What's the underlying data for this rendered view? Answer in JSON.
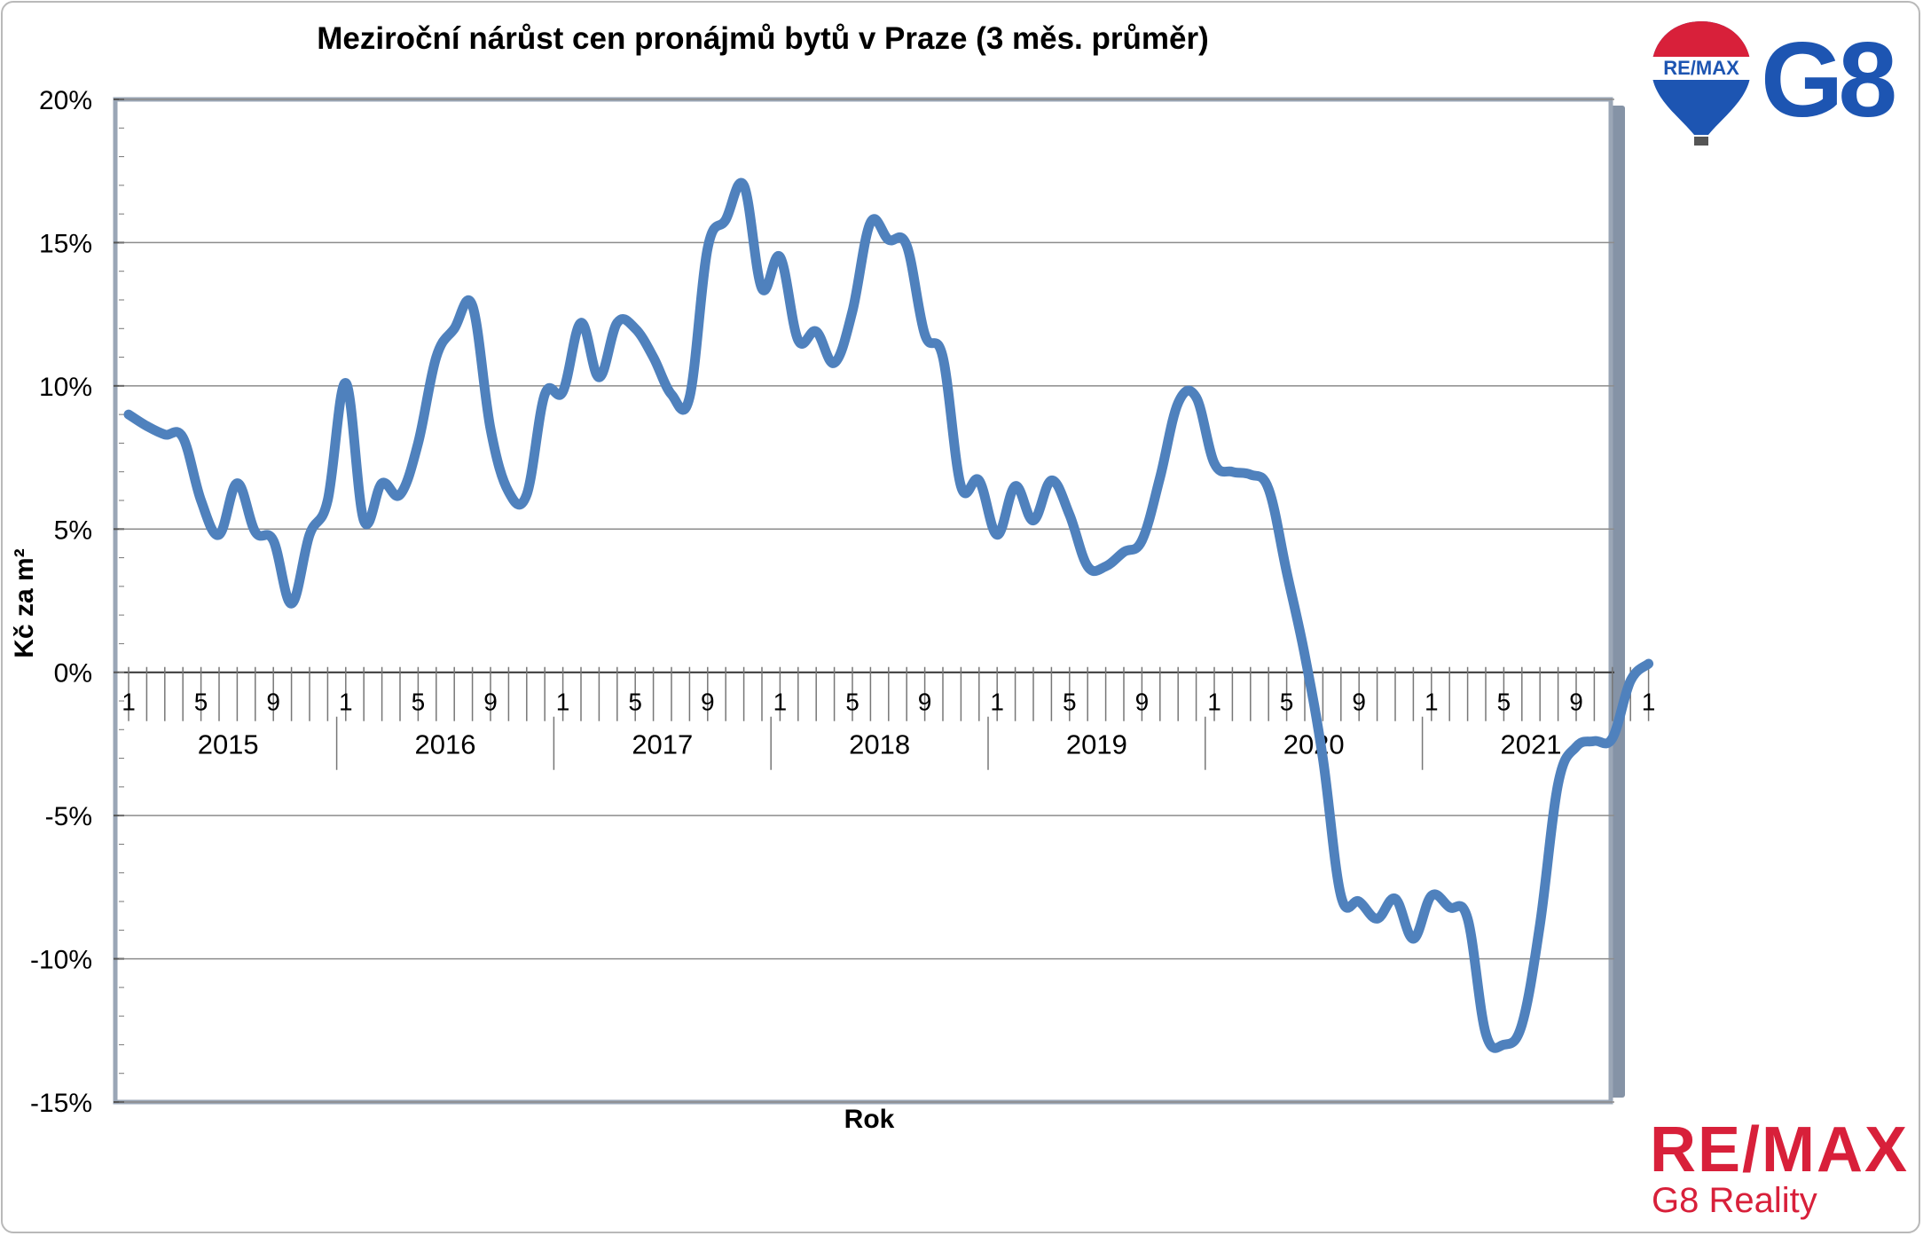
{
  "chart_data": {
    "type": "line",
    "title": "Meziroční nárůst cen pronájmů bytů v Praze (3 měs. průměr)",
    "ylabel": "Kč za m²",
    "xlabel": "Rok",
    "ylim": [
      -15,
      20
    ],
    "yticks": [
      20,
      15,
      10,
      5,
      0,
      -5,
      -10,
      -15
    ],
    "ytick_labels": [
      "20%",
      "15%",
      "10%",
      "5%",
      "0%",
      "-5%",
      "-10%",
      "-15%"
    ],
    "grid": "horizontal",
    "years": [
      "2015",
      "2016",
      "2017",
      "2018",
      "2019",
      "2020",
      "2021"
    ],
    "month_labels": [
      "1",
      "5",
      "9"
    ],
    "series": [
      {
        "color": "#4f81bd",
        "values": [
          9.0,
          8.6,
          8.3,
          8.2,
          6.0,
          4.8,
          6.6,
          4.9,
          4.6,
          2.4,
          4.8,
          6.0,
          10.1,
          5.3,
          6.6,
          6.2,
          8.0,
          11.0,
          12.0,
          12.8,
          8.5,
          6.3,
          6.2,
          9.7,
          9.8,
          12.2,
          10.3,
          12.2,
          12.0,
          11.0,
          9.7,
          9.6,
          14.8,
          15.8,
          17.0,
          13.4,
          14.5,
          11.6,
          11.9,
          10.8,
          12.6,
          15.7,
          15.1,
          14.9,
          11.8,
          11.0,
          6.5,
          6.7,
          4.8,
          6.5,
          5.3,
          6.7,
          5.5,
          3.7,
          3.7,
          4.2,
          4.6,
          6.8,
          9.4,
          9.6,
          7.3,
          7.0,
          6.9,
          6.4,
          3.5,
          0.6,
          -3.0,
          -7.8,
          -8.0,
          -8.6,
          -7.9,
          -9.3,
          -7.8,
          -8.2,
          -8.6,
          -12.6,
          -13.0,
          -12.3,
          -8.8,
          -3.9,
          -2.6,
          -2.4,
          -2.3,
          -0.3,
          0.3
        ]
      }
    ]
  },
  "branding": {
    "balloon_text": "RE/MAX",
    "g8_logo": "G8",
    "remax_wordmark": "RE/MAX",
    "tagline": "G8 Reality",
    "colors": {
      "red": "#d8203a",
      "blue": "#1d55b2"
    }
  }
}
